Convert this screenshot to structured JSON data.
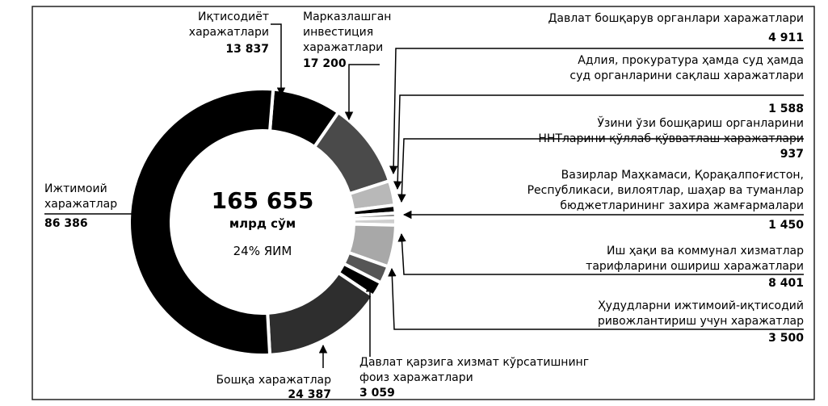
{
  "chart_data": {
    "type": "donut",
    "annotations": [
      "165 655",
      "млрд сўм",
      "24% ЯИМ"
    ],
    "categories": [
      "Иқтисодиёт\nхаражатлари",
      "Марказлашган\nинвестиция\nхаражатлари",
      "Давлат бошқарув органлари харажатлари",
      "Адлия, прокуратура ҳамда суд ҳамда\nсуд органларини сақлаш харажатлари",
      "Ўзини ўзи бошқариш органларини\nННТларини қўллаб-қўвватлаш харажатлари",
      "Вазирлар Маҳкамаси, Қорақалпоғистон,\nРеспубликаси, вилоятлар, шаҳар ва туманлар\nбюджетларининг захира жамғармалари",
      "Иш ҳақи ва коммунал хизматлар\nтарифларини ошириш харажатлари",
      "Ҳудудларни ижтимоий-иқтисодий\nривожлантириш учун харажатлар",
      "Давлат қарзига хизмат кўрсатишнинг\nфоиз харажатлари",
      "Бошқа харажатлар",
      "Ижтимоий\nхаражатлар"
    ],
    "values": [
      13837,
      17200,
      4911,
      1588,
      937,
      1450,
      8401,
      3500,
      3059,
      24387,
      86386
    ],
    "value_labels": [
      "13 837",
      "17 200",
      "4 911",
      "1 588",
      "937",
      "1 450",
      "8 401",
      "3 500",
      "3 059",
      "24 387",
      "86 386"
    ],
    "colors": [
      "#000000",
      "#4a4a4a",
      "#b8b8b8",
      "#000000",
      "#7a7a7a",
      "#cfcfcf",
      "#a8a8a8",
      "#555555",
      "#000000",
      "#2e2e2e",
      "#000000"
    ]
  }
}
